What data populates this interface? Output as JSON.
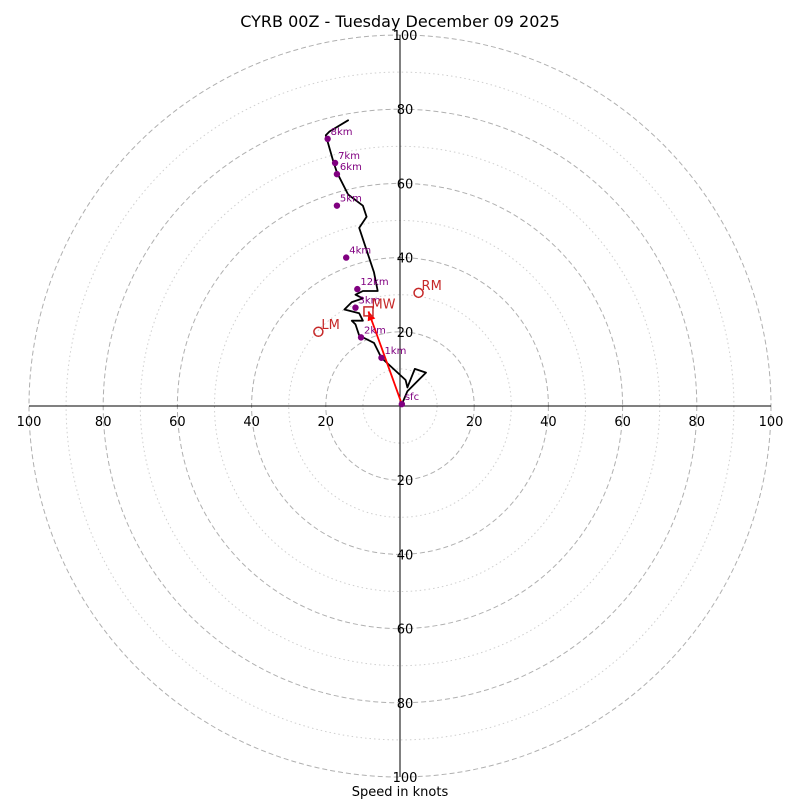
{
  "chart_data": {
    "type": "hodograph",
    "title": "CYRB 00Z - Tuesday December 09 2025",
    "xlabel": "Speed in knots",
    "units": "knots",
    "range": [
      -100,
      100
    ],
    "major_rings": [
      20,
      40,
      60,
      80,
      100
    ],
    "minor_rings": [
      10,
      30,
      50,
      70,
      90
    ],
    "x_ticks": [
      {
        "value": -100,
        "label": "100"
      },
      {
        "value": -80,
        "label": "80"
      },
      {
        "value": -60,
        "label": "60"
      },
      {
        "value": -40,
        "label": "40"
      },
      {
        "value": -20,
        "label": "20"
      },
      {
        "value": 20,
        "label": "20"
      },
      {
        "value": 40,
        "label": "40"
      },
      {
        "value": 60,
        "label": "60"
      },
      {
        "value": 80,
        "label": "80"
      },
      {
        "value": 100,
        "label": "100"
      }
    ],
    "y_ticks": [
      {
        "value": 100,
        "label": "100"
      },
      {
        "value": 80,
        "label": "80"
      },
      {
        "value": 60,
        "label": "60"
      },
      {
        "value": 40,
        "label": "40"
      },
      {
        "value": 20,
        "label": "20"
      },
      {
        "value": -20,
        "label": "20"
      },
      {
        "value": -40,
        "label": "40"
      },
      {
        "value": -60,
        "label": "60"
      },
      {
        "value": -80,
        "label": "80"
      },
      {
        "value": -100,
        "label": "100"
      }
    ],
    "trace": [
      [
        0.5,
        0.5
      ],
      [
        2,
        4
      ],
      [
        7,
        9
      ],
      [
        4,
        10
      ],
      [
        2,
        5
      ],
      [
        1.5,
        7
      ],
      [
        -5,
        13
      ],
      [
        -6,
        15
      ],
      [
        -7,
        17
      ],
      [
        -11,
        19
      ],
      [
        -12,
        22
      ],
      [
        -13,
        23
      ],
      [
        -10,
        23
      ],
      [
        -11,
        25
      ],
      [
        -15,
        26
      ],
      [
        -13,
        28
      ],
      [
        -10,
        29
      ],
      [
        -12,
        30
      ],
      [
        -10,
        31
      ],
      [
        -6,
        31
      ],
      [
        -7,
        36
      ],
      [
        -9,
        42
      ],
      [
        -11,
        48
      ],
      [
        -9,
        51
      ],
      [
        -10,
        54
      ],
      [
        -14,
        57
      ],
      [
        -16,
        61
      ],
      [
        -17,
        63
      ],
      [
        -18,
        66
      ],
      [
        -20,
        73
      ],
      [
        -19,
        74
      ],
      [
        -14,
        77
      ],
      [
        -19,
        74
      ]
    ],
    "height_markers": [
      {
        "label": "sfc",
        "u": 0.5,
        "v": 0.5
      },
      {
        "label": "1km",
        "u": -5,
        "v": 13
      },
      {
        "label": "2km",
        "u": -10.5,
        "v": 18.5
      },
      {
        "label": "3km",
        "u": -12,
        "v": 26.5
      },
      {
        "label": "12km",
        "u": -11.5,
        "v": 31.5
      },
      {
        "label": "4km",
        "u": -14.5,
        "v": 40
      },
      {
        "label": "5km",
        "u": -17,
        "v": 54
      },
      {
        "label": "6km",
        "u": -17,
        "v": 62.5
      },
      {
        "label": "7km",
        "u": -17.5,
        "v": 65.5
      },
      {
        "label": "8km",
        "u": -19.5,
        "v": 72
      }
    ],
    "storm_motion": [
      {
        "label": "RM",
        "marker": "circle",
        "u": 5,
        "v": 30.5
      },
      {
        "label": "LM",
        "marker": "circle",
        "u": -22,
        "v": 20
      },
      {
        "label": "MW",
        "marker": "square",
        "u": -8.5,
        "v": 25.5
      }
    ],
    "shear_arrow": {
      "from": [
        0.5,
        0.5
      ],
      "to": [
        -8.5,
        25.5
      ],
      "color": "#ff0000"
    }
  }
}
